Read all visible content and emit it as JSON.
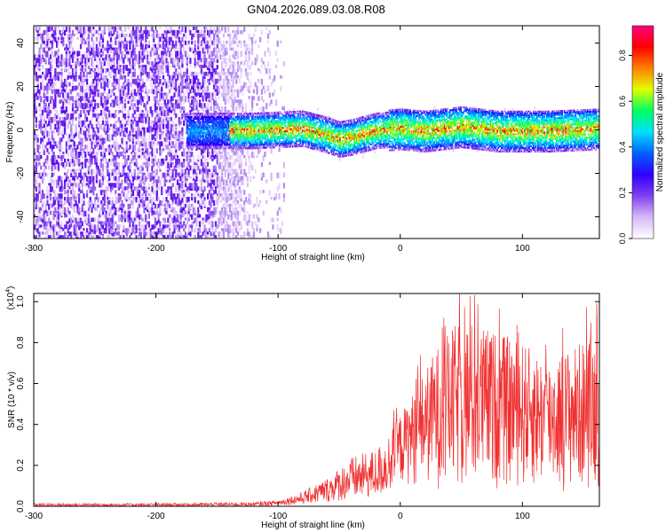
{
  "title": "GN04.2026.089.03.08.R08",
  "chart_data": [
    {
      "type": "heatmap",
      "title": "GN04.2026.089.03.08.R08",
      "xlabel": "Height of straight line (km)",
      "ylabel": "Frequency (Hz)",
      "xlim": [
        -300,
        163
      ],
      "ylim": [
        -50,
        48
      ],
      "xticks": [
        -300,
        -200,
        -100,
        0,
        100
      ],
      "xtick_labels": [
        "-300",
        "-200",
        "-100",
        "0",
        "100"
      ],
      "yticks": [
        -40,
        -20,
        0,
        20,
        40
      ],
      "ytick_labels": [
        "-40",
        "-20",
        "0",
        "20",
        "40"
      ],
      "colorbar": {
        "label": "Normalized spectral amplitude",
        "range": [
          0,
          0.93
        ],
        "ticks": [
          0.0,
          0.2,
          0.4,
          0.6,
          0.8
        ],
        "tick_labels": [
          "0.0",
          "0.2",
          "0.4",
          "0.6",
          "0.8"
        ],
        "colors": [
          "#ffffff",
          "#d8b8f8",
          "#8040f0",
          "#3000ff",
          "#0060ff",
          "#00e0ff",
          "#00ff60",
          "#e0ff00",
          "#ff8000",
          "#ff0000",
          "#ff0080"
        ]
      },
      "features": {
        "noise_region_km": [
          -300,
          -95
        ],
        "dense_noise_until_km": -130,
        "carrier_band_start_km": -175,
        "carrier_center_hz": [
          [
            -175,
            0
          ],
          [
            -120,
            0
          ],
          [
            -80,
            1
          ],
          [
            -60,
            -2
          ],
          [
            -50,
            -4
          ],
          [
            -40,
            -3
          ],
          [
            -20,
            0
          ],
          [
            0,
            1
          ],
          [
            20,
            0
          ],
          [
            50,
            2
          ],
          [
            80,
            0
          ],
          [
            120,
            0
          ],
          [
            163,
            1
          ]
        ],
        "carrier_halfwidth_hz": 5
      }
    },
    {
      "type": "line",
      "xlabel": "Height of straight line (km)",
      "ylabel": "SNR (10 * v/v)",
      "multiplier": "(x10^4)",
      "multiplier_base": "(x10",
      "multiplier_exp": "4",
      "multiplier_close": ")",
      "color": "#f03030",
      "xlim": [
        -300,
        163
      ],
      "ylim": [
        0,
        1.04
      ],
      "xticks": [
        -300,
        -200,
        -100,
        0,
        100
      ],
      "xtick_labels": [
        "-300",
        "-200",
        "-100",
        "0",
        "100"
      ],
      "yticks": [
        0.0,
        0.2,
        0.4,
        0.6,
        0.8,
        1.0
      ],
      "ytick_labels": [
        "0.0",
        "0.2",
        "0.4",
        "0.6",
        "0.8",
        "1.0"
      ],
      "envelope": {
        "x": [
          -300,
          -200,
          -120,
          -100,
          -80,
          -60,
          -40,
          -20,
          -10,
          0,
          10,
          20,
          30,
          40,
          50,
          60,
          80,
          100,
          120,
          140,
          163
        ],
        "upper": [
          0.015,
          0.015,
          0.02,
          0.03,
          0.07,
          0.14,
          0.24,
          0.28,
          0.35,
          0.45,
          0.55,
          0.66,
          0.78,
          0.85,
          0.92,
          0.9,
          0.85,
          0.8,
          0.72,
          0.78,
          0.85
        ],
        "lower": [
          0.0,
          0.0,
          0.0,
          0.005,
          0.01,
          0.02,
          0.03,
          0.04,
          0.06,
          0.1,
          0.1,
          0.1,
          0.08,
          0.06,
          0.05,
          0.06,
          0.08,
          0.08,
          0.08,
          0.07,
          0.08
        ]
      }
    }
  ]
}
